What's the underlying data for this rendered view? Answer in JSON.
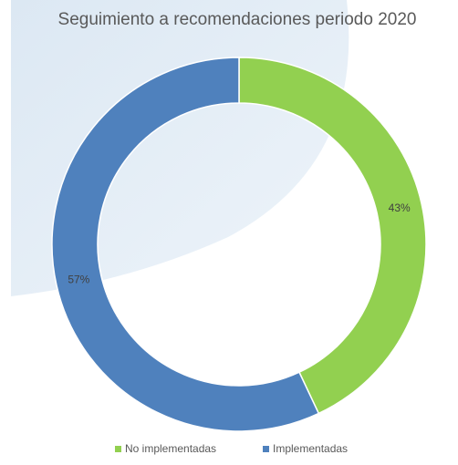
{
  "chart_data": {
    "type": "pie",
    "title": "Seguimiento a recomendaciones periodo 2020",
    "categories": [
      "No implementadas",
      "Implementadas"
    ],
    "values": [
      43,
      57
    ],
    "value_labels": [
      "43%",
      "57%"
    ],
    "colors": [
      "#92d050",
      "#4f81bd"
    ],
    "donut": true,
    "legend": "bottom"
  }
}
